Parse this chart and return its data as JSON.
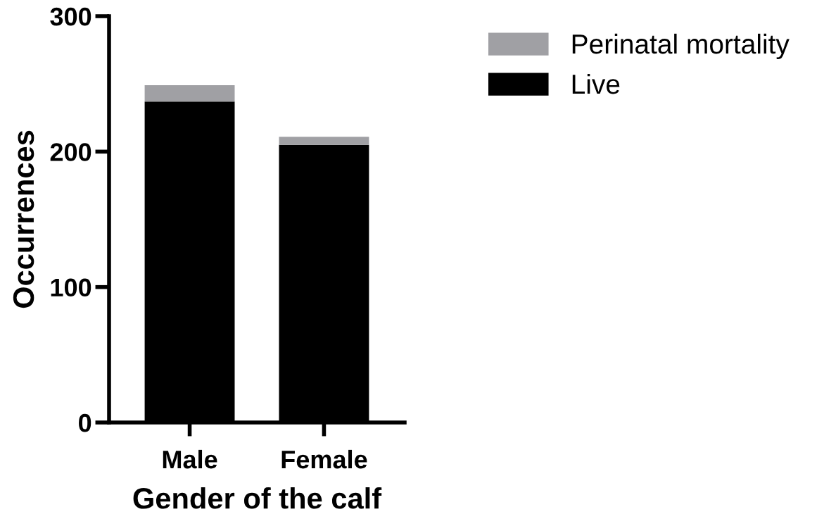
{
  "chart_data": {
    "type": "bar",
    "stacked": true,
    "xlabel": "Gender of the calf",
    "ylabel": "Occurrences",
    "categories": [
      "Male",
      "Female"
    ],
    "series": [
      {
        "name": "Live",
        "color": "#000000",
        "values": [
          237,
          205
        ]
      },
      {
        "name": "Perinatal mortality",
        "color": "#a0a0a4",
        "values": [
          12,
          6
        ]
      }
    ],
    "ylim": [
      0,
      300
    ],
    "yticks": [
      0,
      100,
      200,
      300
    ],
    "grid": false,
    "legend": "top right"
  }
}
